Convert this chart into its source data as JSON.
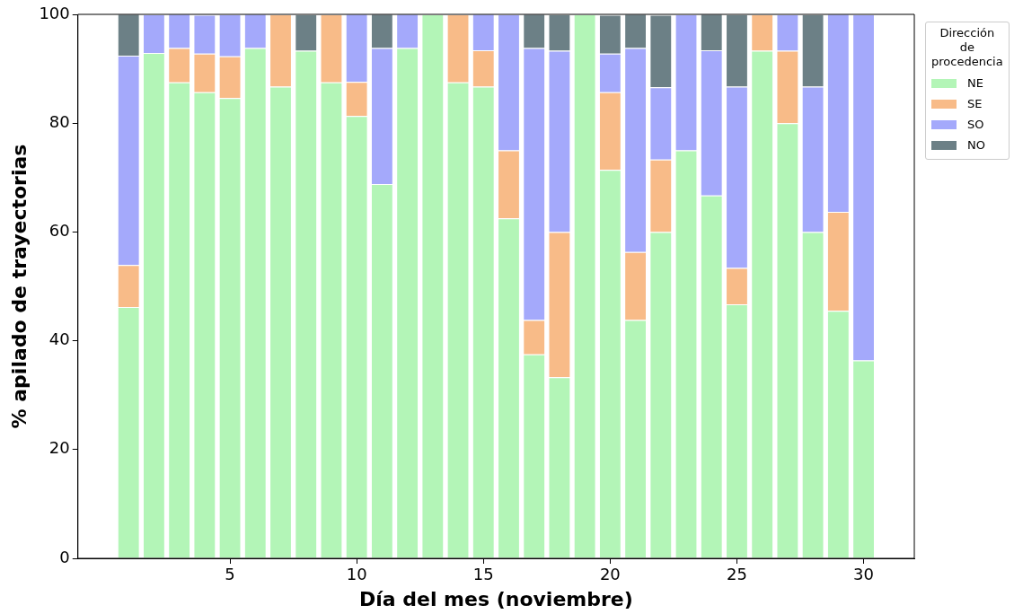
{
  "chart_data": {
    "type": "bar",
    "stacked": true,
    "xlabel": "Día del mes (noviembre)",
    "ylabel": "% apilado de trayectorias",
    "legend_title": "Dirección de procedencia",
    "x": [
      1,
      2,
      3,
      4,
      5,
      6,
      7,
      8,
      9,
      10,
      11,
      12,
      13,
      14,
      15,
      16,
      17,
      18,
      19,
      20,
      21,
      22,
      23,
      24,
      25,
      26,
      27,
      28,
      29,
      30
    ],
    "xlim": [
      -1,
      32
    ],
    "xticks": [
      5,
      10,
      15,
      20,
      25,
      30
    ],
    "ylim": [
      0,
      100
    ],
    "yticks": [
      0,
      20,
      40,
      60,
      80,
      100
    ],
    "grid": false,
    "legend": "top right",
    "series": [
      {
        "name": "NE",
        "color": "#b3f5b7",
        "values": [
          46.2,
          92.9,
          87.5,
          85.7,
          84.6,
          93.8,
          86.7,
          93.3,
          87.5,
          81.3,
          68.8,
          93.8,
          100,
          87.5,
          86.7,
          62.5,
          37.5,
          33.3,
          100,
          71.4,
          43.8,
          60,
          75,
          66.7,
          46.7,
          93.3,
          80,
          60,
          45.5,
          36.4
        ]
      },
      {
        "name": "SE",
        "color": "#f8bb88",
        "values": [
          7.7,
          null,
          6.3,
          7.1,
          7.7,
          null,
          13.3,
          null,
          12.5,
          6.3,
          null,
          null,
          null,
          12.5,
          6.7,
          12.5,
          6.3,
          26.7,
          null,
          14.3,
          12.5,
          13.3,
          null,
          null,
          6.7,
          6.7,
          13.3,
          null,
          18.2,
          null
        ]
      },
      {
        "name": "SO",
        "color": "#a4a9fb",
        "values": [
          38.5,
          7.1,
          6.3,
          7.1,
          7.7,
          6.3,
          null,
          null,
          null,
          12.5,
          25,
          6.3,
          null,
          null,
          6.7,
          25,
          50,
          33.3,
          null,
          7.1,
          37.5,
          13.3,
          25,
          26.7,
          33.3,
          null,
          6.7,
          26.7,
          36.4,
          63.6
        ]
      },
      {
        "name": "NO",
        "color": "#6c8086",
        "values": [
          7.7,
          null,
          null,
          null,
          null,
          null,
          null,
          6.7,
          null,
          null,
          6.3,
          null,
          null,
          null,
          null,
          null,
          6.3,
          6.7,
          null,
          7.1,
          6.3,
          13.3,
          null,
          6.7,
          13.3,
          null,
          null,
          13.3,
          null,
          null
        ]
      }
    ]
  }
}
